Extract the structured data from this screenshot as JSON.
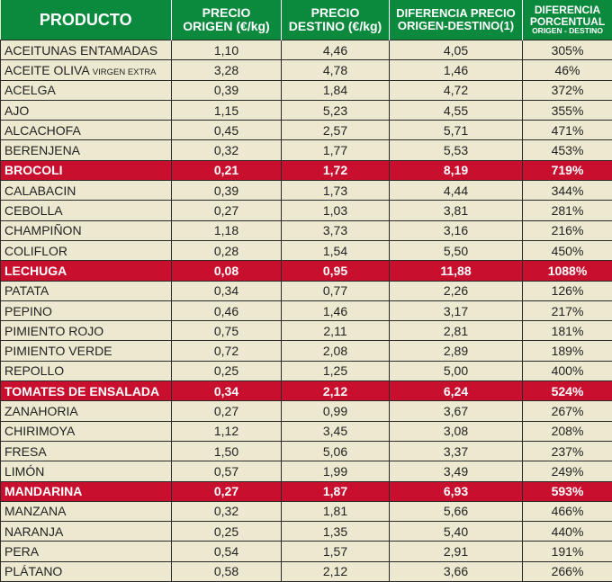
{
  "colors": {
    "header": "#0b8a3e",
    "highlight": "#c8102e",
    "background": "#ede9d0"
  },
  "headers": {
    "producto": "PRODUCTO",
    "origen": [
      "PRECIO",
      "ORIGEN (€/kg)"
    ],
    "destino": [
      "PRECIO",
      "DESTINO (€/kg)"
    ],
    "diferencia": [
      "DIFERENCIA PRECIO",
      "ORIGEN-DESTINO(1)"
    ],
    "porcentual": [
      "DIFERENCIA",
      "PORCENTUAL",
      "ORIGEN - DESTINO"
    ]
  },
  "rows": [
    {
      "name": "ACEITUNAS ENTAMADAS",
      "origen": "1,10",
      "destino": "4,46",
      "diferencia": "4,05",
      "porcentaje": "305%"
    },
    {
      "name": "ACEITE OLIVA",
      "name_sub": "VIRGEN EXTRA",
      "origen": "3,28",
      "destino": "4,78",
      "diferencia": "1,46",
      "porcentaje": "46%"
    },
    {
      "name": "ACELGA",
      "origen": "0,39",
      "destino": "1,84",
      "diferencia": "4,72",
      "porcentaje": "372%"
    },
    {
      "name": "AJO",
      "origen": "1,15",
      "destino": "5,23",
      "diferencia": "4,55",
      "porcentaje": "355%"
    },
    {
      "name": "ALCACHOFA",
      "origen": "0,45",
      "destino": "2,57",
      "diferencia": "5,71",
      "porcentaje": "471%"
    },
    {
      "name": "BERENJENA",
      "origen": "0,32",
      "destino": "1,77",
      "diferencia": "5,53",
      "porcentaje": "453%"
    },
    {
      "name": "BROCOLI",
      "origen": "0,21",
      "destino": "1,72",
      "diferencia": "8,19",
      "porcentaje": "719%",
      "highlight": true
    },
    {
      "name": "CALABACIN",
      "origen": "0,39",
      "destino": "1,73",
      "diferencia": "4,44",
      "porcentaje": "344%"
    },
    {
      "name": "CEBOLLA",
      "origen": "0,27",
      "destino": "1,03",
      "diferencia": "3,81",
      "porcentaje": "281%"
    },
    {
      "name": "CHAMPIÑON",
      "origen": "1,18",
      "destino": "3,73",
      "diferencia": "3,16",
      "porcentaje": "216%"
    },
    {
      "name": "COLIFLOR",
      "origen": "0,28",
      "destino": "1,54",
      "diferencia": "5,50",
      "porcentaje": "450%"
    },
    {
      "name": "LECHUGA",
      "origen": "0,08",
      "destino": "0,95",
      "diferencia": "11,88",
      "porcentaje": "1088%",
      "highlight": true
    },
    {
      "name": "PATATA",
      "origen": "0,34",
      "destino": "0,77",
      "diferencia": "2,26",
      "porcentaje": "126%"
    },
    {
      "name": "PEPINO",
      "origen": "0,46",
      "destino": "1,46",
      "diferencia": "3,17",
      "porcentaje": "217%"
    },
    {
      "name": "PIMIENTO ROJO",
      "origen": "0,75",
      "destino": "2,11",
      "diferencia": "2,81",
      "porcentaje": "181%"
    },
    {
      "name": "PIMIENTO VERDE",
      "origen": "0,72",
      "destino": "2,08",
      "diferencia": "2,89",
      "porcentaje": "189%"
    },
    {
      "name": "REPOLLO",
      "origen": "0,25",
      "destino": "1,25",
      "diferencia": "5,00",
      "porcentaje": "400%"
    },
    {
      "name": "TOMATES DE ENSALADA",
      "origen": "0,34",
      "destino": "2,12",
      "diferencia": "6,24",
      "porcentaje": "524%",
      "highlight": true
    },
    {
      "name": "ZANAHORIA",
      "origen": "0,27",
      "destino": "0,99",
      "diferencia": "3,67",
      "porcentaje": "267%"
    },
    {
      "name": "CHIRIMOYA",
      "origen": "1,12",
      "destino": "3,45",
      "diferencia": "3,08",
      "porcentaje": "208%"
    },
    {
      "name": "FRESA",
      "origen": "1,50",
      "destino": "5,06",
      "diferencia": "3,37",
      "porcentaje": "237%"
    },
    {
      "name": "LIMÓN",
      "origen": "0,57",
      "destino": "1,99",
      "diferencia": "3,49",
      "porcentaje": "249%"
    },
    {
      "name": "MANDARINA",
      "origen": "0,27",
      "destino": "1,87",
      "diferencia": "6,93",
      "porcentaje": "593%",
      "highlight": true
    },
    {
      "name": "MANZANA",
      "origen": "0,32",
      "destino": "1,81",
      "diferencia": "5,66",
      "porcentaje": "466%"
    },
    {
      "name": "NARANJA",
      "origen": "0,25",
      "destino": "1,35",
      "diferencia": "5,40",
      "porcentaje": "440%"
    },
    {
      "name": "PERA",
      "origen": "0,54",
      "destino": "1,57",
      "diferencia": "2,91",
      "porcentaje": "191%"
    },
    {
      "name": "PLÁTANO",
      "origen": "0,58",
      "destino": "2,12",
      "diferencia": "3,66",
      "porcentaje": "266%"
    }
  ]
}
